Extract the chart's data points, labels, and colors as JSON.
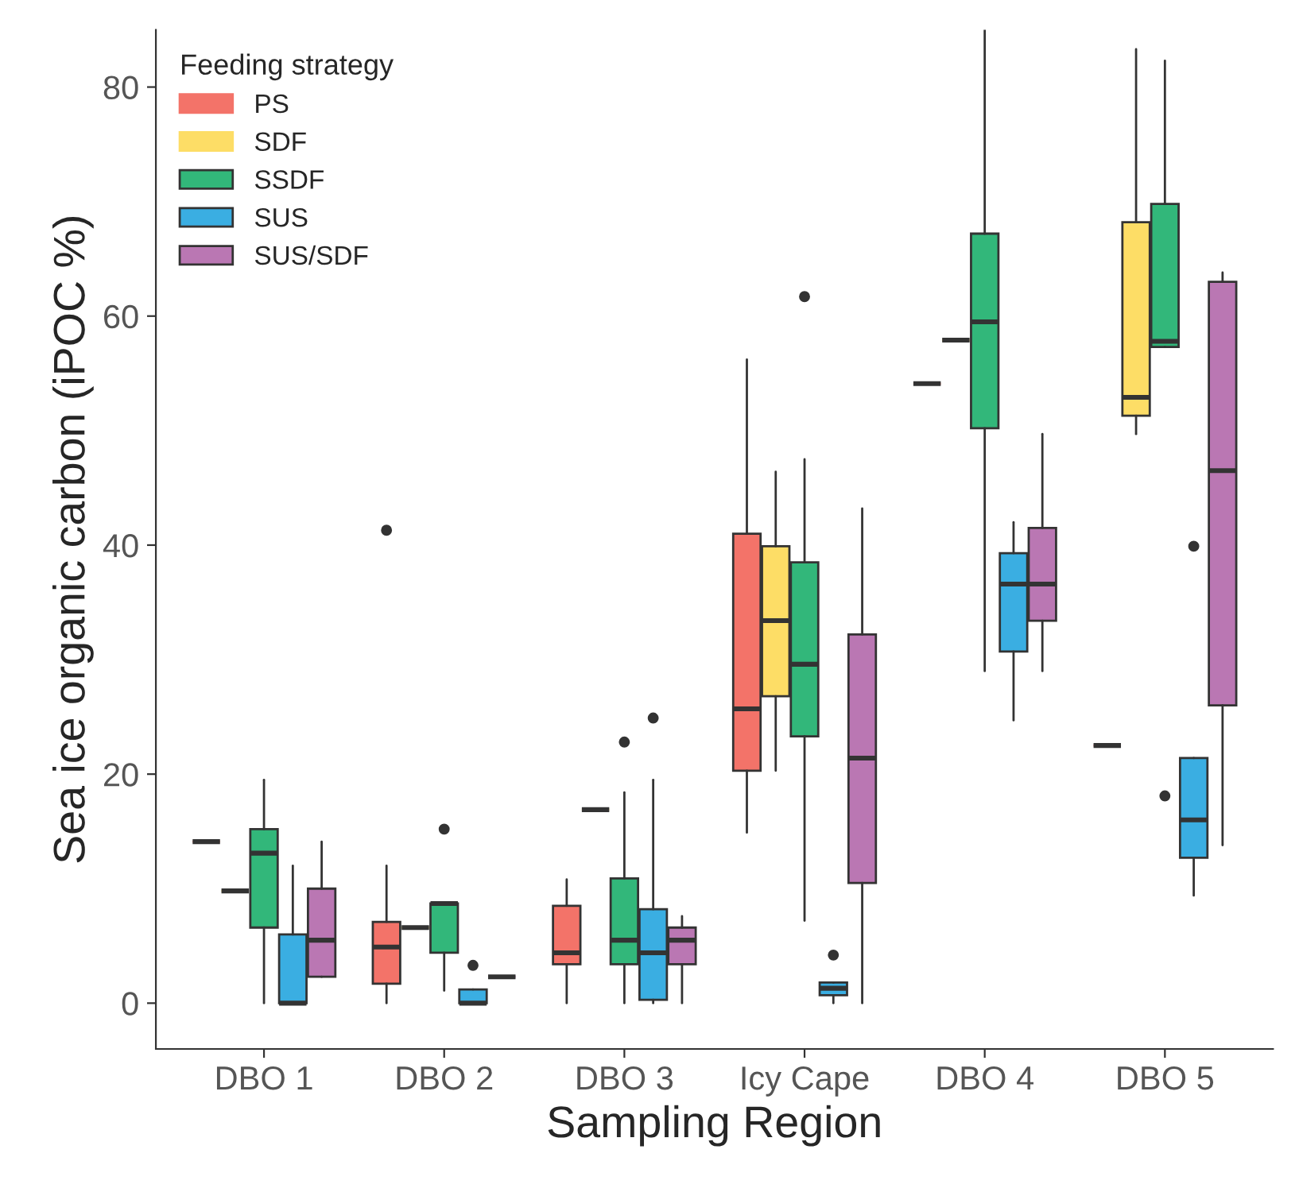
{
  "chart_data": {
    "type": "box",
    "xlabel": "Sampling Region",
    "ylabel": "Sea ice organic carbon (iPOC %)",
    "legend_title": "Feeding strategy",
    "legend": "top left",
    "grid": false,
    "categories": [
      "DBO 1",
      "DBO 2",
      "DBO 3",
      "Icy Cape",
      "DBO 4",
      "DBO 5"
    ],
    "ylim": [
      -4,
      85
    ],
    "yticks": [
      0,
      20,
      40,
      60,
      80
    ],
    "series": [
      {
        "name": "PS",
        "color": "#f37369",
        "boxes": [
          {
            "low": 14.1,
            "q1": 14.1,
            "median": 14.1,
            "q3": 14.1,
            "high": 14.1
          },
          {
            "low": 0,
            "q1": 1.7,
            "median": 4.9,
            "q3": 7.1,
            "high": 12.0,
            "outliers": [
              41.3
            ]
          },
          {
            "low": 0,
            "q1": 3.4,
            "median": 4.4,
            "q3": 8.5,
            "high": 10.8
          },
          {
            "low": 14.9,
            "q1": 20.3,
            "median": 25.7,
            "q3": 41.0,
            "high": 56.2
          },
          {
            "low": 54.1,
            "q1": 54.1,
            "median": 54.1,
            "q3": 54.1,
            "high": 54.1
          },
          {
            "low": 22.5,
            "q1": 22.5,
            "median": 22.5,
            "q3": 22.5,
            "high": 22.5
          }
        ]
      },
      {
        "name": "SDF",
        "color": "#fddd66",
        "boxes": [
          {
            "low": 9.8,
            "q1": 9.8,
            "median": 9.8,
            "q3": 9.8,
            "high": 9.8
          },
          {
            "low": 6.6,
            "q1": 6.6,
            "median": 6.6,
            "q3": 6.6,
            "high": 6.6
          },
          {
            "low": 16.9,
            "q1": 16.9,
            "median": 16.9,
            "q3": 16.9,
            "high": 16.9
          },
          {
            "low": 20.3,
            "q1": 26.8,
            "median": 33.4,
            "q3": 39.9,
            "high": 46.4
          },
          {
            "low": 57.9,
            "q1": 57.9,
            "median": 57.9,
            "q3": 57.9,
            "high": 57.9
          },
          {
            "low": 49.7,
            "q1": 51.3,
            "median": 52.9,
            "q3": 68.2,
            "high": 83.3
          }
        ]
      },
      {
        "name": "SSDF",
        "color": "#32b77a",
        "boxes": [
          {
            "low": 0,
            "q1": 6.6,
            "median": 13.1,
            "q3": 15.2,
            "high": 19.5
          },
          {
            "low": 1.1,
            "q1": 4.4,
            "median": 8.7,
            "q3": 8.7,
            "high": 8.7,
            "outliers": [
              15.2
            ]
          },
          {
            "low": 0,
            "q1": 3.4,
            "median": 5.5,
            "q3": 10.9,
            "high": 18.4,
            "outliers": [
              22.8
            ]
          },
          {
            "low": 7.2,
            "q1": 23.3,
            "median": 29.6,
            "q3": 38.5,
            "high": 47.5,
            "outliers": [
              61.7
            ]
          },
          {
            "low": 29.0,
            "q1": 50.2,
            "median": 59.5,
            "q3": 67.2,
            "high": 85
          },
          {
            "low": 57.3,
            "q1": 57.3,
            "median": 57.8,
            "q3": 69.8,
            "high": 82.3,
            "outliers": [
              18.1
            ]
          }
        ]
      },
      {
        "name": "SUS",
        "color": "#3aaee2",
        "boxes": [
          {
            "low": 0,
            "q1": 0,
            "median": 0,
            "q3": 6.0,
            "high": 12.0
          },
          {
            "low": 0,
            "q1": 0,
            "median": 0,
            "q3": 1.2,
            "high": 1.2,
            "outliers": [
              3.3
            ]
          },
          {
            "low": 0,
            "q1": 0.3,
            "median": 4.4,
            "q3": 8.2,
            "high": 19.5,
            "outliers": [
              24.9
            ]
          },
          {
            "low": 0,
            "q1": 0.7,
            "median": 1.3,
            "q3": 1.8,
            "high": 1.8,
            "outliers": [
              4.2
            ]
          },
          {
            "low": 24.7,
            "q1": 30.7,
            "median": 36.6,
            "q3": 39.3,
            "high": 42.0
          },
          {
            "low": 9.4,
            "q1": 12.7,
            "median": 16.0,
            "q3": 21.4,
            "high": 21.4,
            "outliers": [
              39.9
            ]
          }
        ]
      },
      {
        "name": "SUS/SDF",
        "color": "#ba77b3",
        "boxes": [
          {
            "low": 2.3,
            "q1": 2.3,
            "median": 5.5,
            "q3": 10.0,
            "high": 14.1
          },
          {
            "low": 2.3,
            "q1": 2.3,
            "median": 2.3,
            "q3": 2.3,
            "high": 2.3
          },
          {
            "low": 0,
            "q1": 3.4,
            "median": 5.5,
            "q3": 6.6,
            "high": 7.6
          },
          {
            "low": 0,
            "q1": 10.5,
            "median": 21.4,
            "q3": 32.2,
            "high": 43.2
          },
          {
            "low": 29.0,
            "q1": 33.4,
            "median": 36.6,
            "q3": 41.5,
            "high": 49.7
          },
          {
            "low": 13.8,
            "q1": 26.0,
            "median": 46.5,
            "q3": 63.0,
            "high": 63.8
          }
        ]
      }
    ]
  }
}
